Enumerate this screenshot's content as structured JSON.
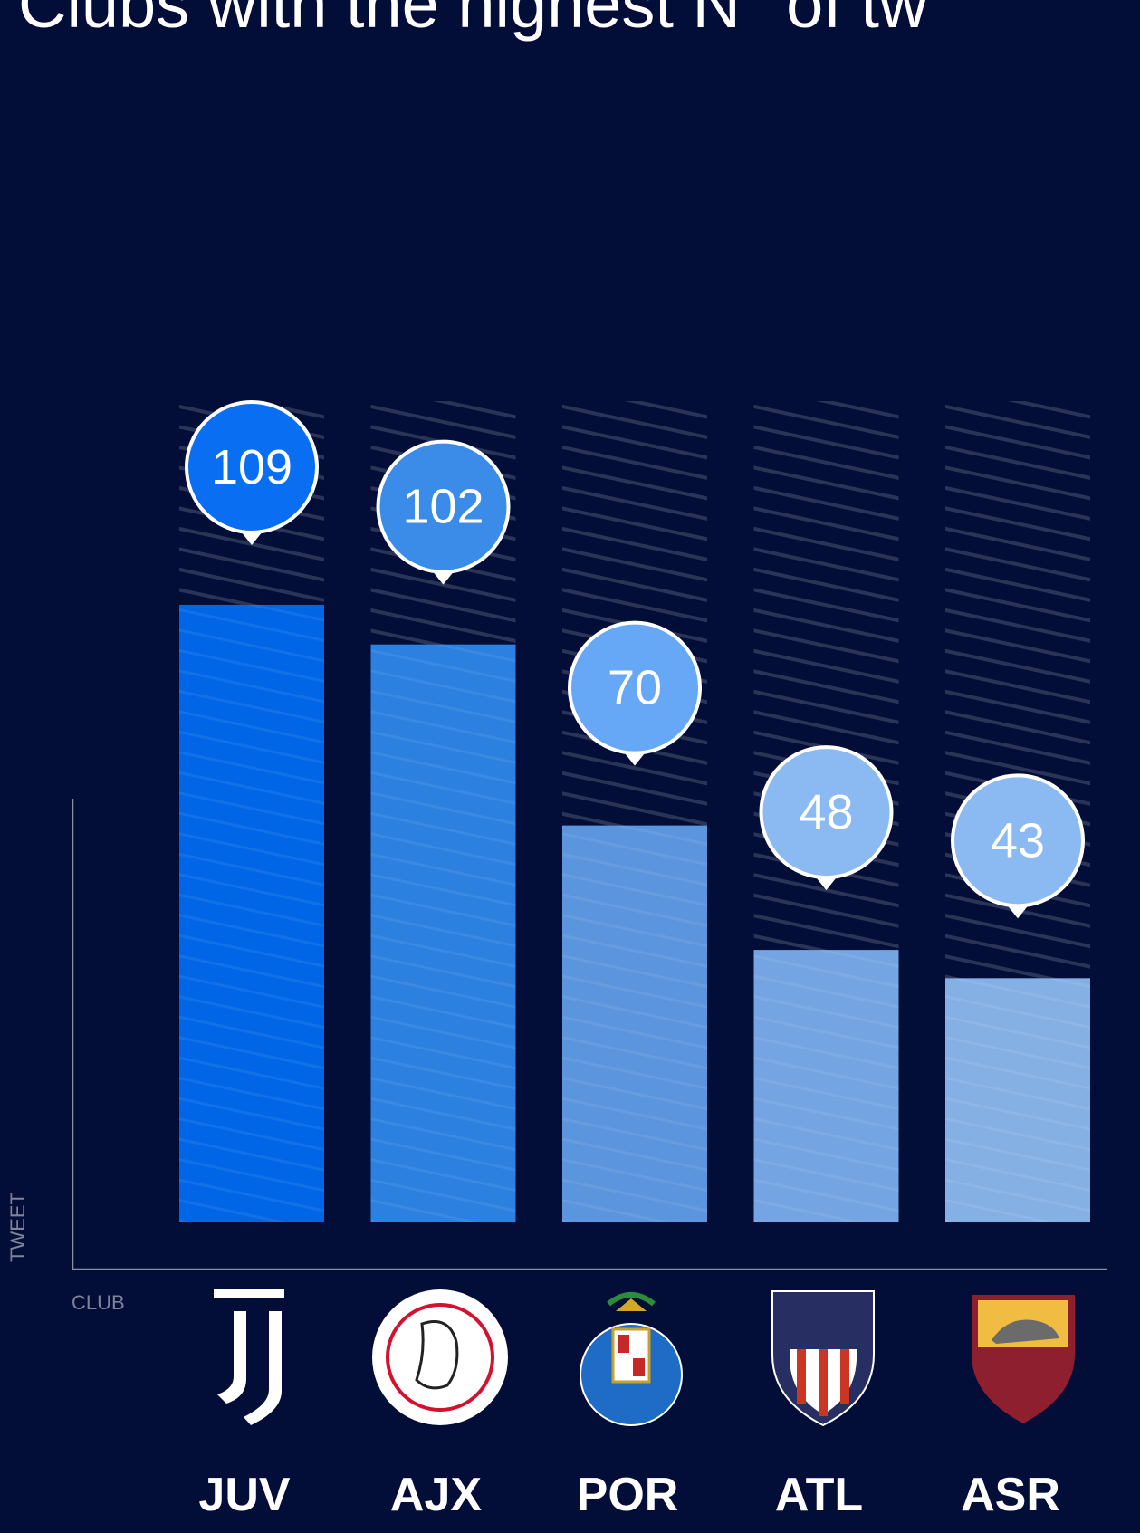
{
  "chart_data": {
    "type": "bar",
    "title": "Clubs with the highest N° of tw",
    "y_label": "TWEET",
    "x_label": "CLUB",
    "categories": [
      "JUV",
      "AJX",
      "POR",
      "ATL",
      "ASR"
    ],
    "values": [
      109,
      102,
      70,
      48,
      43
    ],
    "colors": [
      "#0066e6",
      "#2b80e0",
      "#5b95dd",
      "#74a5e2",
      "#85b0e4"
    ],
    "label_colors": [
      "#0a6ef2",
      "#3b8be8",
      "#66a8f5",
      "#8bbaf2",
      "#8bbaf2"
    ],
    "ylim": [
      0,
      145
    ]
  }
}
